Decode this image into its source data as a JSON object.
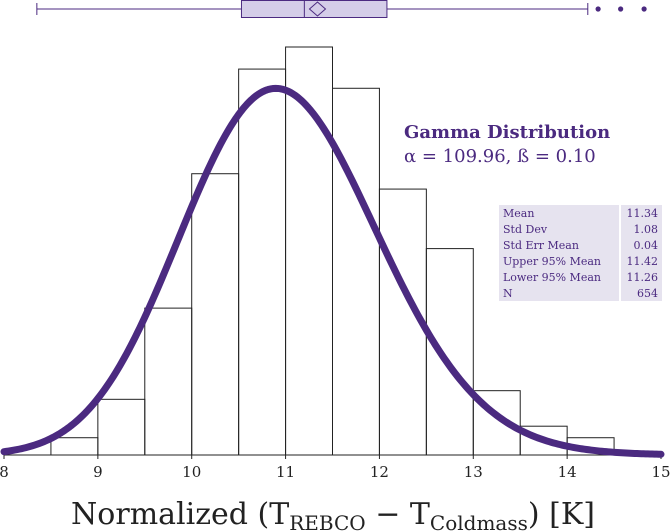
{
  "chart_data": {
    "type": "histogram",
    "title": "",
    "xlabel": {
      "prefix": "Normalized (T",
      "sub1": "REBCO",
      "middle": " − T",
      "sub2": "Coldmass",
      "suffix": ") [K]"
    },
    "xlim": [
      8,
      15
    ],
    "x_ticks": [
      "8",
      "9",
      "10",
      "11",
      "12",
      "13",
      "14",
      "15"
    ],
    "bin_edges": [
      8.5,
      9.0,
      9.5,
      10.0,
      10.5,
      11.0,
      11.5,
      12.0,
      12.5,
      13.0,
      13.5,
      14.0,
      14.5
    ],
    "bin_heights": [
      0.018,
      0.058,
      0.153,
      0.293,
      0.402,
      0.425,
      0.382,
      0.277,
      0.215,
      0.067,
      0.03,
      0.018
    ],
    "fit_curve": {
      "distribution": "Gamma",
      "alpha": 109.96,
      "beta": 0.1
    },
    "fit_label": {
      "title": "Gamma Distribution",
      "params": "α = 109.96, ß = 0.10"
    },
    "summary_stats": [
      {
        "label": "Mean",
        "value": "11.34"
      },
      {
        "label": "Std Dev",
        "value": "1.08"
      },
      {
        "label": "Std Err Mean",
        "value": "0.04"
      },
      {
        "label": "Upper 95% Mean",
        "value": "11.42"
      },
      {
        "label": "Lower 95% Mean",
        "value": "11.26"
      },
      {
        "label": "N",
        "value": "654"
      }
    ],
    "box_plot": {
      "whisker_low": 8.35,
      "q1": 10.53,
      "median": 11.2,
      "q3": 12.08,
      "whisker_high": 14.22,
      "mean": 11.34,
      "outliers": [
        14.33,
        14.57,
        14.82
      ]
    },
    "colors": {
      "curve": "#4b2a80",
      "box_fill": "#d4cde8",
      "stats_fill": "#e6e3ef",
      "text": "#4b2a80"
    }
  }
}
